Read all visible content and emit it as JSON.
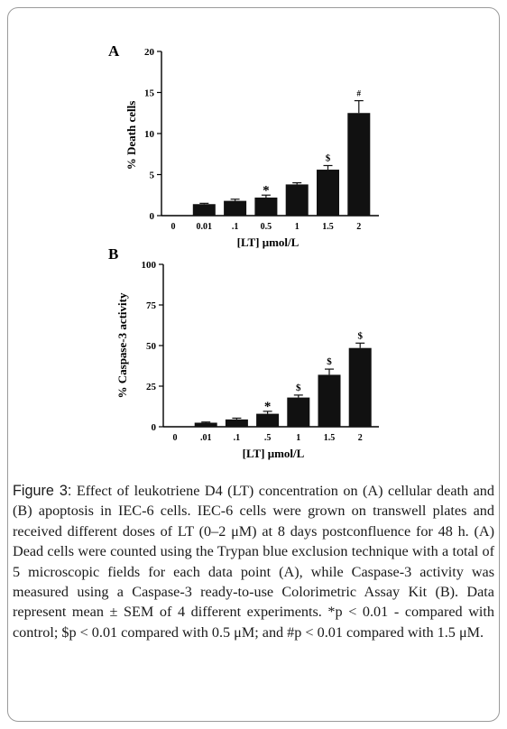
{
  "colors": {
    "bar": "#111111",
    "axis": "#000000",
    "frame": "#9a9a9a",
    "text": "#1a1a1a"
  },
  "chart_data": [
    {
      "type": "bar",
      "panel": "A",
      "categories": [
        "0",
        "0.01",
        ".1",
        "0.5",
        "1",
        "1.5",
        "2"
      ],
      "values": [
        0,
        1.4,
        1.8,
        2.2,
        3.8,
        5.6,
        12.5
      ],
      "errors": [
        0,
        0.1,
        0.2,
        0.3,
        0.2,
        0.5,
        1.5
      ],
      "annotations": [
        "",
        "",
        "",
        "*",
        "",
        "$",
        "#"
      ],
      "xlabel": "[LT] μmol/L",
      "ylabel": "% Death cells",
      "ylim": [
        0,
        20
      ],
      "yticks": [
        "0",
        "5",
        "10",
        "15",
        "20"
      ],
      "grid": false
    },
    {
      "type": "bar",
      "panel": "B",
      "categories": [
        "0",
        ".01",
        ".1",
        ".5",
        "1",
        "1.5",
        "2"
      ],
      "values": [
        0,
        2.5,
        4.5,
        8,
        18,
        32,
        48.5
      ],
      "errors": [
        0,
        0.4,
        0.8,
        1.5,
        1.5,
        3.5,
        3.0
      ],
      "annotations": [
        "",
        "",
        "",
        "*",
        "$",
        "$",
        "$"
      ],
      "xlabel": "[LT] μmol/L",
      "ylabel": "% Caspase-3 activity",
      "ylim": [
        0,
        100
      ],
      "yticks": [
        "0",
        "25",
        "50",
        "75",
        "100"
      ],
      "grid": false
    }
  ],
  "caption": {
    "label": "Figure 3:",
    "text": " Effect of leukotriene D4 (LT) concentration on (A) cellular death and (B) apoptosis in IEC-6 cells. IEC-6 cells were grown on transwell plates and received different doses of LT (0–2 μM) at 8 days postconfluence for 48 h. (A) Dead cells were counted using the Trypan blue exclusion technique with a total of 5 microscopic fields for each data point (A), while Caspase-3 activity was measured using a Caspase-3 ready-to-use Colorimetric Assay Kit (B). Data represent mean ± SEM of 4 different experiments. *p < 0.01 - compared with control; $p < 0.01 compared with 0.5 μM; and #p < 0.01 compared with 1.5 μM."
  }
}
